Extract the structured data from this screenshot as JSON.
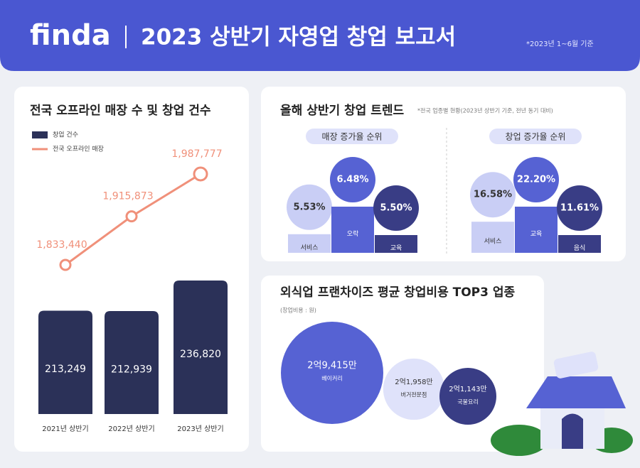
{
  "header": {
    "logo": "finda",
    "title": "2023 상반기 자영업 창업 보고서",
    "note": "*2023년 1~6월 기준"
  },
  "chart_data": [
    {
      "type": "bar_line",
      "title": "전국 오프라인 매장 수 및 창업 건수",
      "categories": [
        "2021년 상반기",
        "2022년 상반기",
        "2023년 상반기"
      ],
      "series": [
        {
          "name": "창업 건수",
          "color": "#2b3158",
          "mark": "bar",
          "values": [
            213249,
            212939,
            236820
          ],
          "value_labels": [
            "213,249",
            "212,939",
            "236,820"
          ]
        },
        {
          "name": "전국 오프라인 매장",
          "color": "#f0907a",
          "mark": "line",
          "values": [
            1833440,
            1915873,
            1987777
          ],
          "value_labels": [
            "1,833,440",
            "1,915,873",
            "1,987,777"
          ]
        }
      ]
    },
    {
      "type": "rank_bubbles",
      "title": "올해 상반기 창업 트렌드",
      "subtitle": "*전국 업종별 현황(2023년 상반기 기준, 전년 동기 대비)",
      "colors": [
        "#c9cef5",
        "#5662d3",
        "#393d85"
      ],
      "groups": [
        {
          "title": "매장 증가율 순위",
          "categories": [
            "서비스",
            "오락",
            "교육"
          ],
          "values": [
            5.53,
            6.48,
            5.5
          ],
          "value_labels": [
            "5.53%",
            "6.48%",
            "5.50%"
          ]
        },
        {
          "title": "창업 증가율 순위",
          "categories": [
            "서비스",
            "교육",
            "음식"
          ],
          "values": [
            16.58,
            22.2,
            11.61
          ],
          "value_labels": [
            "16.58%",
            "22.20%",
            "11.61%"
          ]
        }
      ]
    },
    {
      "type": "bubble",
      "title": "외식업 프랜차이즈 평균 창업비용 TOP3 업종",
      "subtitle": "(창업비용 : 원)",
      "colors": [
        "#5662d3",
        "#dfe2fa",
        "#393d85"
      ],
      "categories": [
        "베이커리",
        "버거전문점",
        "국물요리"
      ],
      "values": [
        294150000,
        219580000,
        211430000
      ],
      "value_labels": [
        "2억9,415만",
        "2억1,958만",
        "2억1,143만"
      ]
    }
  ]
}
